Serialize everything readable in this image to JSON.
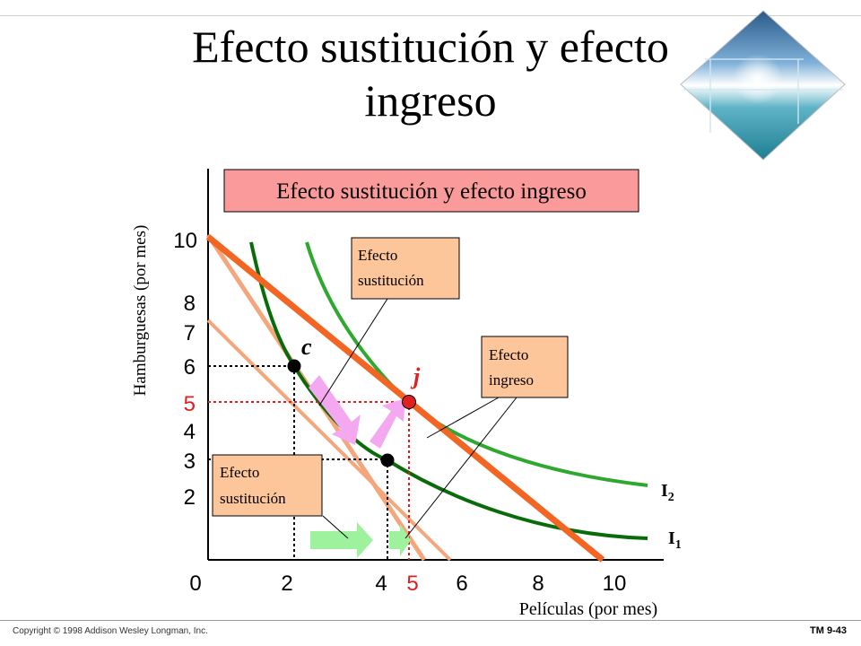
{
  "slide": {
    "title_line1": "Efecto sustitución y efecto",
    "title_line2": "ingreso",
    "copyright": "Copyright © 1998 Addison Wesley Longman, Inc.",
    "slide_number": "TM 9-43"
  },
  "chart": {
    "header_box": "Efecto sustitución y efecto ingreso",
    "y_axis_label": "Hamburguesas (por mes)",
    "x_axis_label": "Películas (por mes)",
    "y_ticks": [
      "10",
      "8",
      "7",
      "6",
      "5",
      "4",
      "3",
      "2"
    ],
    "x_ticks": [
      "0",
      "2",
      "4",
      "5",
      "6",
      "8",
      "10"
    ],
    "highlight_tick": "5",
    "callouts": {
      "substitution_top_line1": "Efecto",
      "substitution_top_line2": "sustitución",
      "income_line1": "Efecto",
      "income_line2": "ingreso",
      "substitution_bottom_line1": "Efecto",
      "substitution_bottom_line2": "sustitución"
    },
    "points": {
      "c": "c",
      "j": "j"
    },
    "curves": {
      "i2": "I",
      "i2_sub": "2",
      "i1": "I",
      "i1_sub": "1"
    },
    "colors": {
      "budget_new": "#f26522",
      "budget_old": "#f4a67c",
      "indifference_i1": "#0a6b0a",
      "indifference_i2": "#2ea82e",
      "highlight": "#e02020",
      "callout_fill": "#fcc59a",
      "header_fill": "#fa9a9a",
      "arrow_green": "#9ef29e",
      "arrow_pink": "#f4a8f0"
    }
  }
}
